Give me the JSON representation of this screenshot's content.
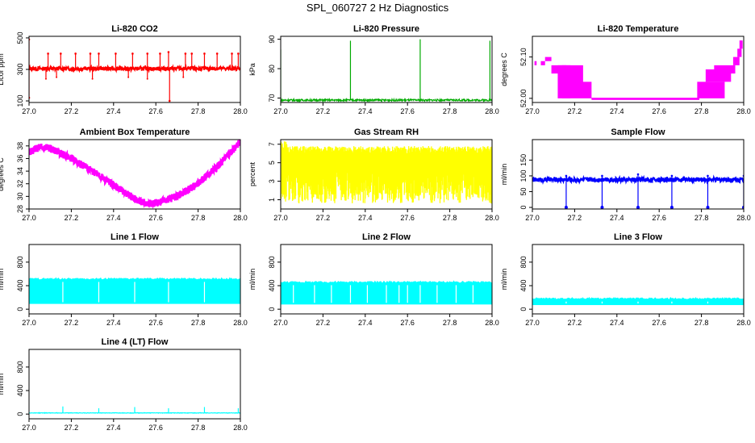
{
  "page": {
    "title": "SPL_060727  2 Hz Diagnostics"
  },
  "chart_data": [
    {
      "id": "co2",
      "type": "line",
      "title": "Li-820 CO2",
      "xlabel": "",
      "ylabel": "Licor ppm",
      "color": "#ff0000",
      "xlim": [
        27.0,
        28.0
      ],
      "ylim": [
        90,
        510
      ],
      "xticks": [
        "27.0",
        "27.2",
        "27.4",
        "27.6",
        "27.8",
        "28.0"
      ],
      "yticks": [
        "100",
        "300",
        "500"
      ],
      "series": [
        {
          "pattern": "baseline_spikes",
          "base": 305,
          "noise": 12,
          "spikes": [
            [
              27.0,
              490
            ],
            [
              27.0,
              120
            ],
            [
              27.09,
              400
            ],
            [
              27.15,
              400
            ],
            [
              27.22,
              400
            ],
            [
              27.29,
              400
            ],
            [
              27.33,
              400
            ],
            [
              27.41,
              400
            ],
            [
              27.49,
              400
            ],
            [
              27.56,
              400
            ],
            [
              27.62,
              400
            ],
            [
              27.66,
              410
            ],
            [
              27.665,
              100
            ],
            [
              27.74,
              400
            ],
            [
              27.77,
              400
            ],
            [
              27.83,
              400
            ],
            [
              27.89,
              400
            ],
            [
              27.96,
              400
            ],
            [
              27.99,
              400
            ]
          ],
          "dips": [
            [
              27.08,
              240
            ],
            [
              27.13,
              250
            ],
            [
              27.3,
              240
            ],
            [
              27.47,
              250
            ],
            [
              27.56,
              240
            ],
            [
              27.73,
              250
            ]
          ]
        }
      ]
    },
    {
      "id": "pressure",
      "type": "line",
      "title": "Li-820 Pressure",
      "xlabel": "",
      "ylabel": "kPa",
      "color": "#00aa00",
      "xlim": [
        27.0,
        28.0
      ],
      "ylim": [
        68.5,
        91
      ],
      "xticks": [
        "27.0",
        "27.2",
        "27.4",
        "27.6",
        "27.8",
        "28.0"
      ],
      "yticks": [
        "70",
        "80",
        "90"
      ],
      "series": [
        {
          "pattern": "baseline_spikes",
          "base": 69.3,
          "noise": 0.3,
          "spikes": [
            [
              27.0,
              86.5
            ],
            [
              27.33,
              89.5
            ],
            [
              27.66,
              90.0
            ],
            [
              27.99,
              89.5
            ]
          ],
          "dips": []
        }
      ]
    },
    {
      "id": "temp",
      "type": "line",
      "title": "Li-820 Temperature",
      "xlabel": "",
      "ylabel": "degrees C",
      "color": "#ff00ff",
      "xlim": [
        27.0,
        28.0
      ],
      "ylim": [
        51.99,
        52.15
      ],
      "xticks": [
        "27.0",
        "27.2",
        "27.4",
        "27.6",
        "27.8",
        "28.0"
      ],
      "yticks": [
        "52.00",
        "52.10"
      ],
      "series": [
        {
          "pattern": "temperature_band"
        }
      ]
    },
    {
      "id": "ambient",
      "type": "line",
      "title": "Ambient Box Temperature",
      "xlabel": "",
      "ylabel": "degrees C",
      "color": "#ff00ff",
      "xlim": [
        27.0,
        28.0
      ],
      "ylim": [
        28,
        39
      ],
      "xticks": [
        "27.0",
        "27.2",
        "27.4",
        "27.6",
        "27.8",
        "28.0"
      ],
      "yticks": [
        "28",
        "30",
        "32",
        "34",
        "36",
        "38"
      ],
      "series": [
        {
          "pattern": "curve",
          "noise": 0.6,
          "points": [
            [
              27.0,
              37.0
            ],
            [
              27.05,
              37.8
            ],
            [
              27.1,
              37.6
            ],
            [
              27.2,
              36.0
            ],
            [
              27.3,
              34.0
            ],
            [
              27.4,
              31.8
            ],
            [
              27.5,
              29.6
            ],
            [
              27.56,
              28.8
            ],
            [
              27.62,
              29.1
            ],
            [
              27.7,
              30.0
            ],
            [
              27.8,
              32.0
            ],
            [
              27.9,
              35.0
            ],
            [
              28.0,
              38.6
            ]
          ]
        }
      ]
    },
    {
      "id": "rh",
      "type": "area",
      "title": "Gas Stream RH",
      "xlabel": "",
      "ylabel": "percent",
      "color": "#ffff00",
      "xlim": [
        27.0,
        28.0
      ],
      "ylim": [
        0,
        7.5
      ],
      "xticks": [
        "27.0",
        "27.2",
        "27.4",
        "27.6",
        "27.8",
        "28.0"
      ],
      "yticks": [
        "1",
        "3",
        "5",
        "7"
      ],
      "series": [
        {
          "pattern": "rh_band",
          "top": 6.4,
          "bottom": 1.5
        }
      ]
    },
    {
      "id": "sample",
      "type": "line",
      "title": "Sample Flow",
      "xlabel": "",
      "ylabel": "ml/min",
      "color": "#0000ff",
      "xlim": [
        27.0,
        28.0
      ],
      "ylim": [
        -5,
        215
      ],
      "xticks": [
        "27.0",
        "27.2",
        "27.4",
        "27.6",
        "27.8",
        "28.0"
      ],
      "yticks": [
        "0",
        "50",
        "100",
        "150"
      ],
      "series": [
        {
          "pattern": "baseline_spikes",
          "base": 88,
          "noise": 7,
          "spikes": [
            [
              27.16,
              100
            ],
            [
              27.33,
              100
            ],
            [
              27.5,
              105
            ],
            [
              27.66,
              100
            ],
            [
              27.83,
              100
            ],
            [
              28.0,
              100
            ]
          ],
          "dips": [
            [
              27.16,
              0
            ],
            [
              27.33,
              0
            ],
            [
              27.5,
              0
            ],
            [
              27.66,
              0
            ],
            [
              27.83,
              0
            ],
            [
              28.0,
              0
            ]
          ]
        }
      ]
    },
    {
      "id": "line1",
      "type": "area",
      "title": "Line 1 Flow",
      "xlabel": "",
      "ylabel": "ml/min",
      "color": "#00ffff",
      "xlim": [
        27.0,
        28.0
      ],
      "ylim": [
        -80,
        1100
      ],
      "xticks": [
        "27.0",
        "27.2",
        "27.4",
        "27.6",
        "27.8",
        "28.0"
      ],
      "yticks": [
        "0",
        "400",
        "800"
      ],
      "series": [
        {
          "pattern": "flow_block",
          "top": 505,
          "bottom": 90,
          "gaps": [
            27.16,
            27.33,
            27.5,
            27.66,
            27.83
          ]
        }
      ]
    },
    {
      "id": "line2",
      "type": "area",
      "title": "Line 2 Flow",
      "xlabel": "",
      "ylabel": "ml/min",
      "color": "#00ffff",
      "xlim": [
        27.0,
        28.0
      ],
      "ylim": [
        -80,
        1100
      ],
      "xticks": [
        "27.0",
        "27.2",
        "27.4",
        "27.6",
        "27.8",
        "28.0"
      ],
      "yticks": [
        "0",
        "400",
        "800"
      ],
      "series": [
        {
          "pattern": "flow_block",
          "top": 450,
          "bottom": 80,
          "gaps": [
            27.06,
            27.16,
            27.24,
            27.33,
            27.41,
            27.5,
            27.56,
            27.6,
            27.66,
            27.74,
            27.83,
            27.91
          ]
        }
      ]
    },
    {
      "id": "line3",
      "type": "area",
      "title": "Line 3 Flow",
      "xlabel": "",
      "ylabel": "ml/min",
      "color": "#00ffff",
      "xlim": [
        27.0,
        28.0
      ],
      "ylim": [
        -80,
        1100
      ],
      "xticks": [
        "27.0",
        "27.2",
        "27.4",
        "27.6",
        "27.8",
        "28.0"
      ],
      "yticks": [
        "0",
        "400",
        "800"
      ],
      "series": [
        {
          "pattern": "flow_block",
          "top": 170,
          "bottom": 70,
          "gaps": [
            27.16,
            27.33,
            27.5,
            27.66,
            27.83
          ]
        }
      ]
    },
    {
      "id": "line4",
      "type": "line",
      "title": "Line 4 (LT) Flow",
      "xlabel": "",
      "ylabel": "ml/min",
      "color": "#00ffff",
      "xlim": [
        27.0,
        28.0
      ],
      "ylim": [
        -80,
        1100
      ],
      "xticks": [
        "27.0",
        "27.2",
        "27.4",
        "27.6",
        "27.8",
        "28.0"
      ],
      "yticks": [
        "0",
        "400",
        "800"
      ],
      "series": [
        {
          "pattern": "baseline_spikes",
          "base": 20,
          "noise": 4,
          "spikes": [
            [
              27.16,
              130
            ],
            [
              27.33,
              100
            ],
            [
              27.5,
              120
            ],
            [
              27.66,
              100
            ],
            [
              27.83,
              120
            ],
            [
              27.99,
              100
            ]
          ],
          "dips": []
        }
      ]
    }
  ]
}
